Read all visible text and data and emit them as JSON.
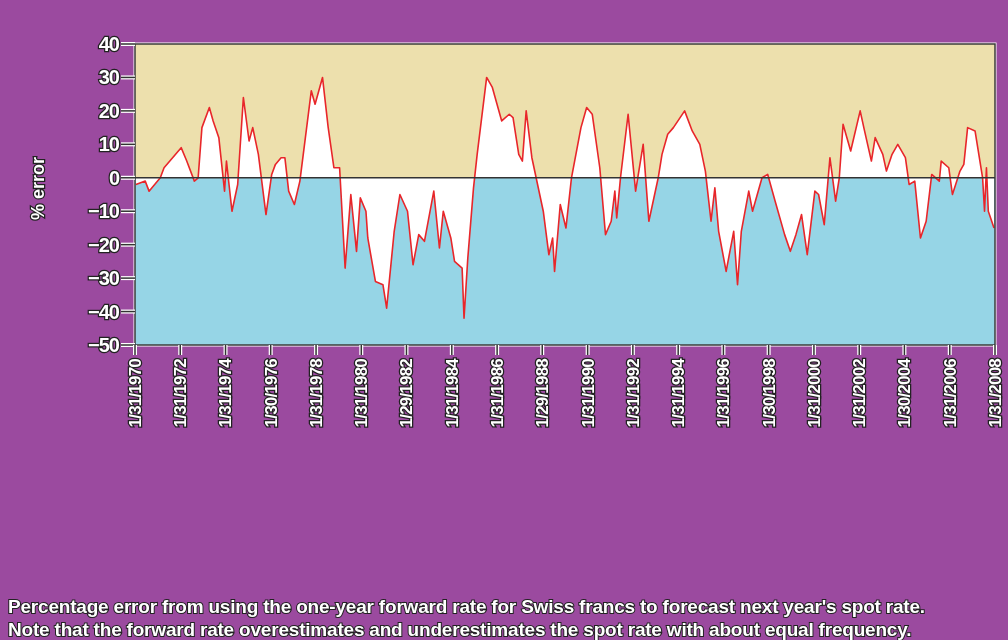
{
  "chart_data": {
    "type": "area",
    "ylabel": "% error",
    "x": [
      "1970-02",
      "1970-07",
      "1970-09",
      "1971-03",
      "1971-05",
      "1972-02",
      "1972-05",
      "1972-09",
      "1972-11",
      "1973-01",
      "1973-05",
      "1973-07",
      "1973-10",
      "1974-01",
      "1974-02",
      "1974-05",
      "1974-08",
      "1974-11",
      "1975-02",
      "1975-04",
      "1975-07",
      "1975-11",
      "1976-02",
      "1976-04",
      "1976-07",
      "1976-09",
      "1976-11",
      "1977-02",
      "1977-05",
      "1977-11",
      "1978-01",
      "1978-05",
      "1978-08",
      "1978-11",
      "1979-02",
      "1979-05",
      "1979-08",
      "1979-11",
      "1980-01",
      "1980-04",
      "1980-05",
      "1980-09",
      "1981-01",
      "1981-03",
      "1981-07",
      "1981-10",
      "1982-02",
      "1982-05",
      "1982-08",
      "1982-11",
      "1983-04",
      "1983-07",
      "1983-09",
      "1984-01",
      "1984-03",
      "1984-07",
      "1984-08",
      "1984-10",
      "1985-01",
      "1985-03",
      "1985-08",
      "1985-11",
      "1986-04",
      "1986-08",
      "1986-10",
      "1987-01",
      "1987-03",
      "1987-05",
      "1987-08",
      "1988-02",
      "1988-05",
      "1988-07",
      "1988-08",
      "1988-11",
      "1989-02",
      "1989-05",
      "1989-10",
      "1990-01",
      "1990-04",
      "1990-08",
      "1990-11",
      "1991-02",
      "1991-04",
      "1991-05",
      "1991-07",
      "1991-11",
      "1992-03",
      "1992-07",
      "1992-10",
      "1993-03",
      "1993-05",
      "1993-08",
      "1993-11",
      "1994-05",
      "1994-09",
      "1995-01",
      "1995-04",
      "1995-07",
      "1995-09",
      "1995-11",
      "1996-03",
      "1996-07",
      "1996-09",
      "1996-11",
      "1997-03",
      "1997-05",
      "1997-10",
      "1998-01",
      "1998-05",
      "1998-10",
      "1999-01",
      "1999-04",
      "1999-07",
      "1999-10",
      "2000-02",
      "2000-04",
      "2000-07",
      "2000-10",
      "2001-01",
      "2001-03",
      "2001-05",
      "2001-09",
      "2002-02",
      "2002-04",
      "2002-08",
      "2002-10",
      "2003-02",
      "2003-04",
      "2003-07",
      "2003-10",
      "2004-02",
      "2004-04",
      "2004-07",
      "2004-10",
      "2005-01",
      "2005-04",
      "2005-08",
      "2005-09",
      "2006-01",
      "2006-03",
      "2006-07",
      "2006-09",
      "2006-11",
      "2007-03",
      "2007-07",
      "2007-08",
      "2007-09",
      "2007-10",
      "2008-01"
    ],
    "series": [
      {
        "color": "#e8262a",
        "values": [
          -2,
          -1,
          -4,
          0,
          3,
          9,
          5,
          -1,
          0,
          15,
          21,
          17,
          12,
          -4,
          5,
          -10,
          -2,
          24,
          11,
          15,
          7,
          -11,
          1,
          4,
          6,
          6,
          -4,
          -8,
          -1,
          26,
          22,
          30,
          15,
          3,
          3,
          -27,
          -5,
          -22,
          -6,
          -10,
          -18,
          -31,
          -32,
          -39,
          -16,
          -5,
          -10,
          -26,
          -17,
          -19,
          -4,
          -21,
          -10,
          -18,
          -25,
          -27,
          -42,
          -24,
          -3,
          7,
          30,
          27,
          17,
          19,
          18,
          7,
          5,
          20,
          6,
          -10,
          -23,
          -18,
          -28,
          -8,
          -15,
          0,
          15,
          21,
          19,
          3,
          -17,
          -13,
          -4,
          -12,
          0,
          19,
          -4,
          10,
          -13,
          0,
          7,
          13,
          15,
          20,
          14,
          10,
          2,
          -13,
          -3,
          -16,
          -28,
          -16,
          -32,
          -16,
          -4,
          -10,
          0,
          1,
          -7,
          -17,
          -22,
          -17,
          -11,
          -23,
          -4,
          -5,
          -14,
          6,
          -7,
          0,
          16,
          8,
          20,
          15,
          5,
          12,
          7,
          2,
          7,
          10,
          6,
          -2,
          -1,
          -18,
          -13,
          1,
          -1,
          5,
          3,
          -5,
          2,
          4,
          15,
          14,
          0,
          -10,
          3,
          -10,
          -15
        ]
      }
    ],
    "xlim": [
      "1970-01-31",
      "2008-01-31"
    ],
    "xticks": [
      {
        "value": "1970-01-31",
        "label": "1/31/1970"
      },
      {
        "value": "1972-01-31",
        "label": "1/31/1972"
      },
      {
        "value": "1974-01-31",
        "label": "1/31/1974"
      },
      {
        "value": "1976-01-30",
        "label": "1/30/1976"
      },
      {
        "value": "1978-01-31",
        "label": "1/31/1978"
      },
      {
        "value": "1980-01-31",
        "label": "1/31/1980"
      },
      {
        "value": "1982-01-29",
        "label": "1/29/1982"
      },
      {
        "value": "1984-01-31",
        "label": "1/31/1984"
      },
      {
        "value": "1986-01-31",
        "label": "1/31/1986"
      },
      {
        "value": "1988-01-29",
        "label": "1/29/1988"
      },
      {
        "value": "1990-01-31",
        "label": "1/31/1990"
      },
      {
        "value": "1992-01-31",
        "label": "1/31/1992"
      },
      {
        "value": "1994-01-31",
        "label": "1/31/1994"
      },
      {
        "value": "1996-01-31",
        "label": "1/31/1996"
      },
      {
        "value": "1998-01-30",
        "label": "1/30/1998"
      },
      {
        "value": "2000-01-31",
        "label": "1/31/2000"
      },
      {
        "value": "2002-01-31",
        "label": "1/31/2002"
      },
      {
        "value": "2004-01-30",
        "label": "1/30/2004"
      },
      {
        "value": "2006-01-31",
        "label": "1/31/2006"
      },
      {
        "value": "2008-01-31",
        "label": "1/31/2008"
      }
    ],
    "ylim": [
      -50,
      40
    ],
    "yticks": [
      -50,
      -40,
      -30,
      -20,
      -10,
      0,
      10,
      20,
      30,
      40
    ],
    "bands": [
      {
        "axis": "y",
        "from": 0,
        "to": 40,
        "color": "#ede0ad"
      },
      {
        "axis": "y",
        "from": -50,
        "to": 0,
        "color": "#96d5e6"
      }
    ],
    "ref_lines": [
      {
        "axis": "y",
        "value": 0,
        "color": "#333333"
      }
    ],
    "annotations": [
      "Percentage error from using the one-year forward rate for Swiss francs to forecast next year's spot rate.",
      "Note that the forward rate overestimates and underestimates the spot rate with about equal frequency."
    ]
  }
}
